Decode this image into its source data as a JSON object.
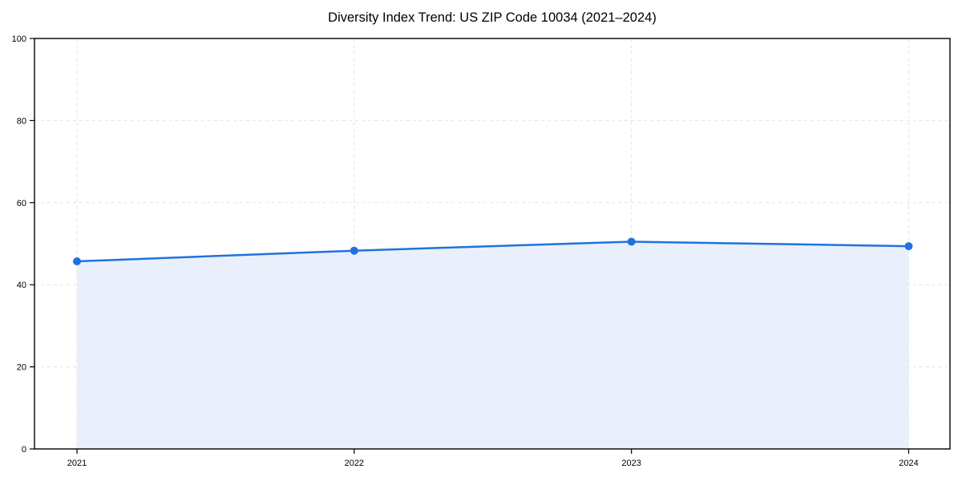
{
  "chart_data": {
    "type": "area",
    "title": "Diversity Index Trend: US ZIP Code 10034 (2021–2024)",
    "x": [
      "2021",
      "2022",
      "2023",
      "2024"
    ],
    "series": [
      {
        "name": "Diversity Index",
        "values": [
          45.7,
          48.3,
          50.5,
          49.4
        ]
      }
    ],
    "xlabel": "",
    "ylabel": "",
    "ylim": [
      0,
      100
    ],
    "yticks": [
      0,
      20,
      40,
      60,
      80,
      100
    ],
    "grid": "dashed, light gray, horizontal at y-ticks and vertical at each year",
    "legend_position": "none",
    "colors": {
      "line": "#2172dc",
      "marker": "#2172dc",
      "fill": "#e9f0fc",
      "grid": "#e3e3e3",
      "spine": "#000000",
      "tick_text": "#000000",
      "background": "#ffffff"
    }
  }
}
